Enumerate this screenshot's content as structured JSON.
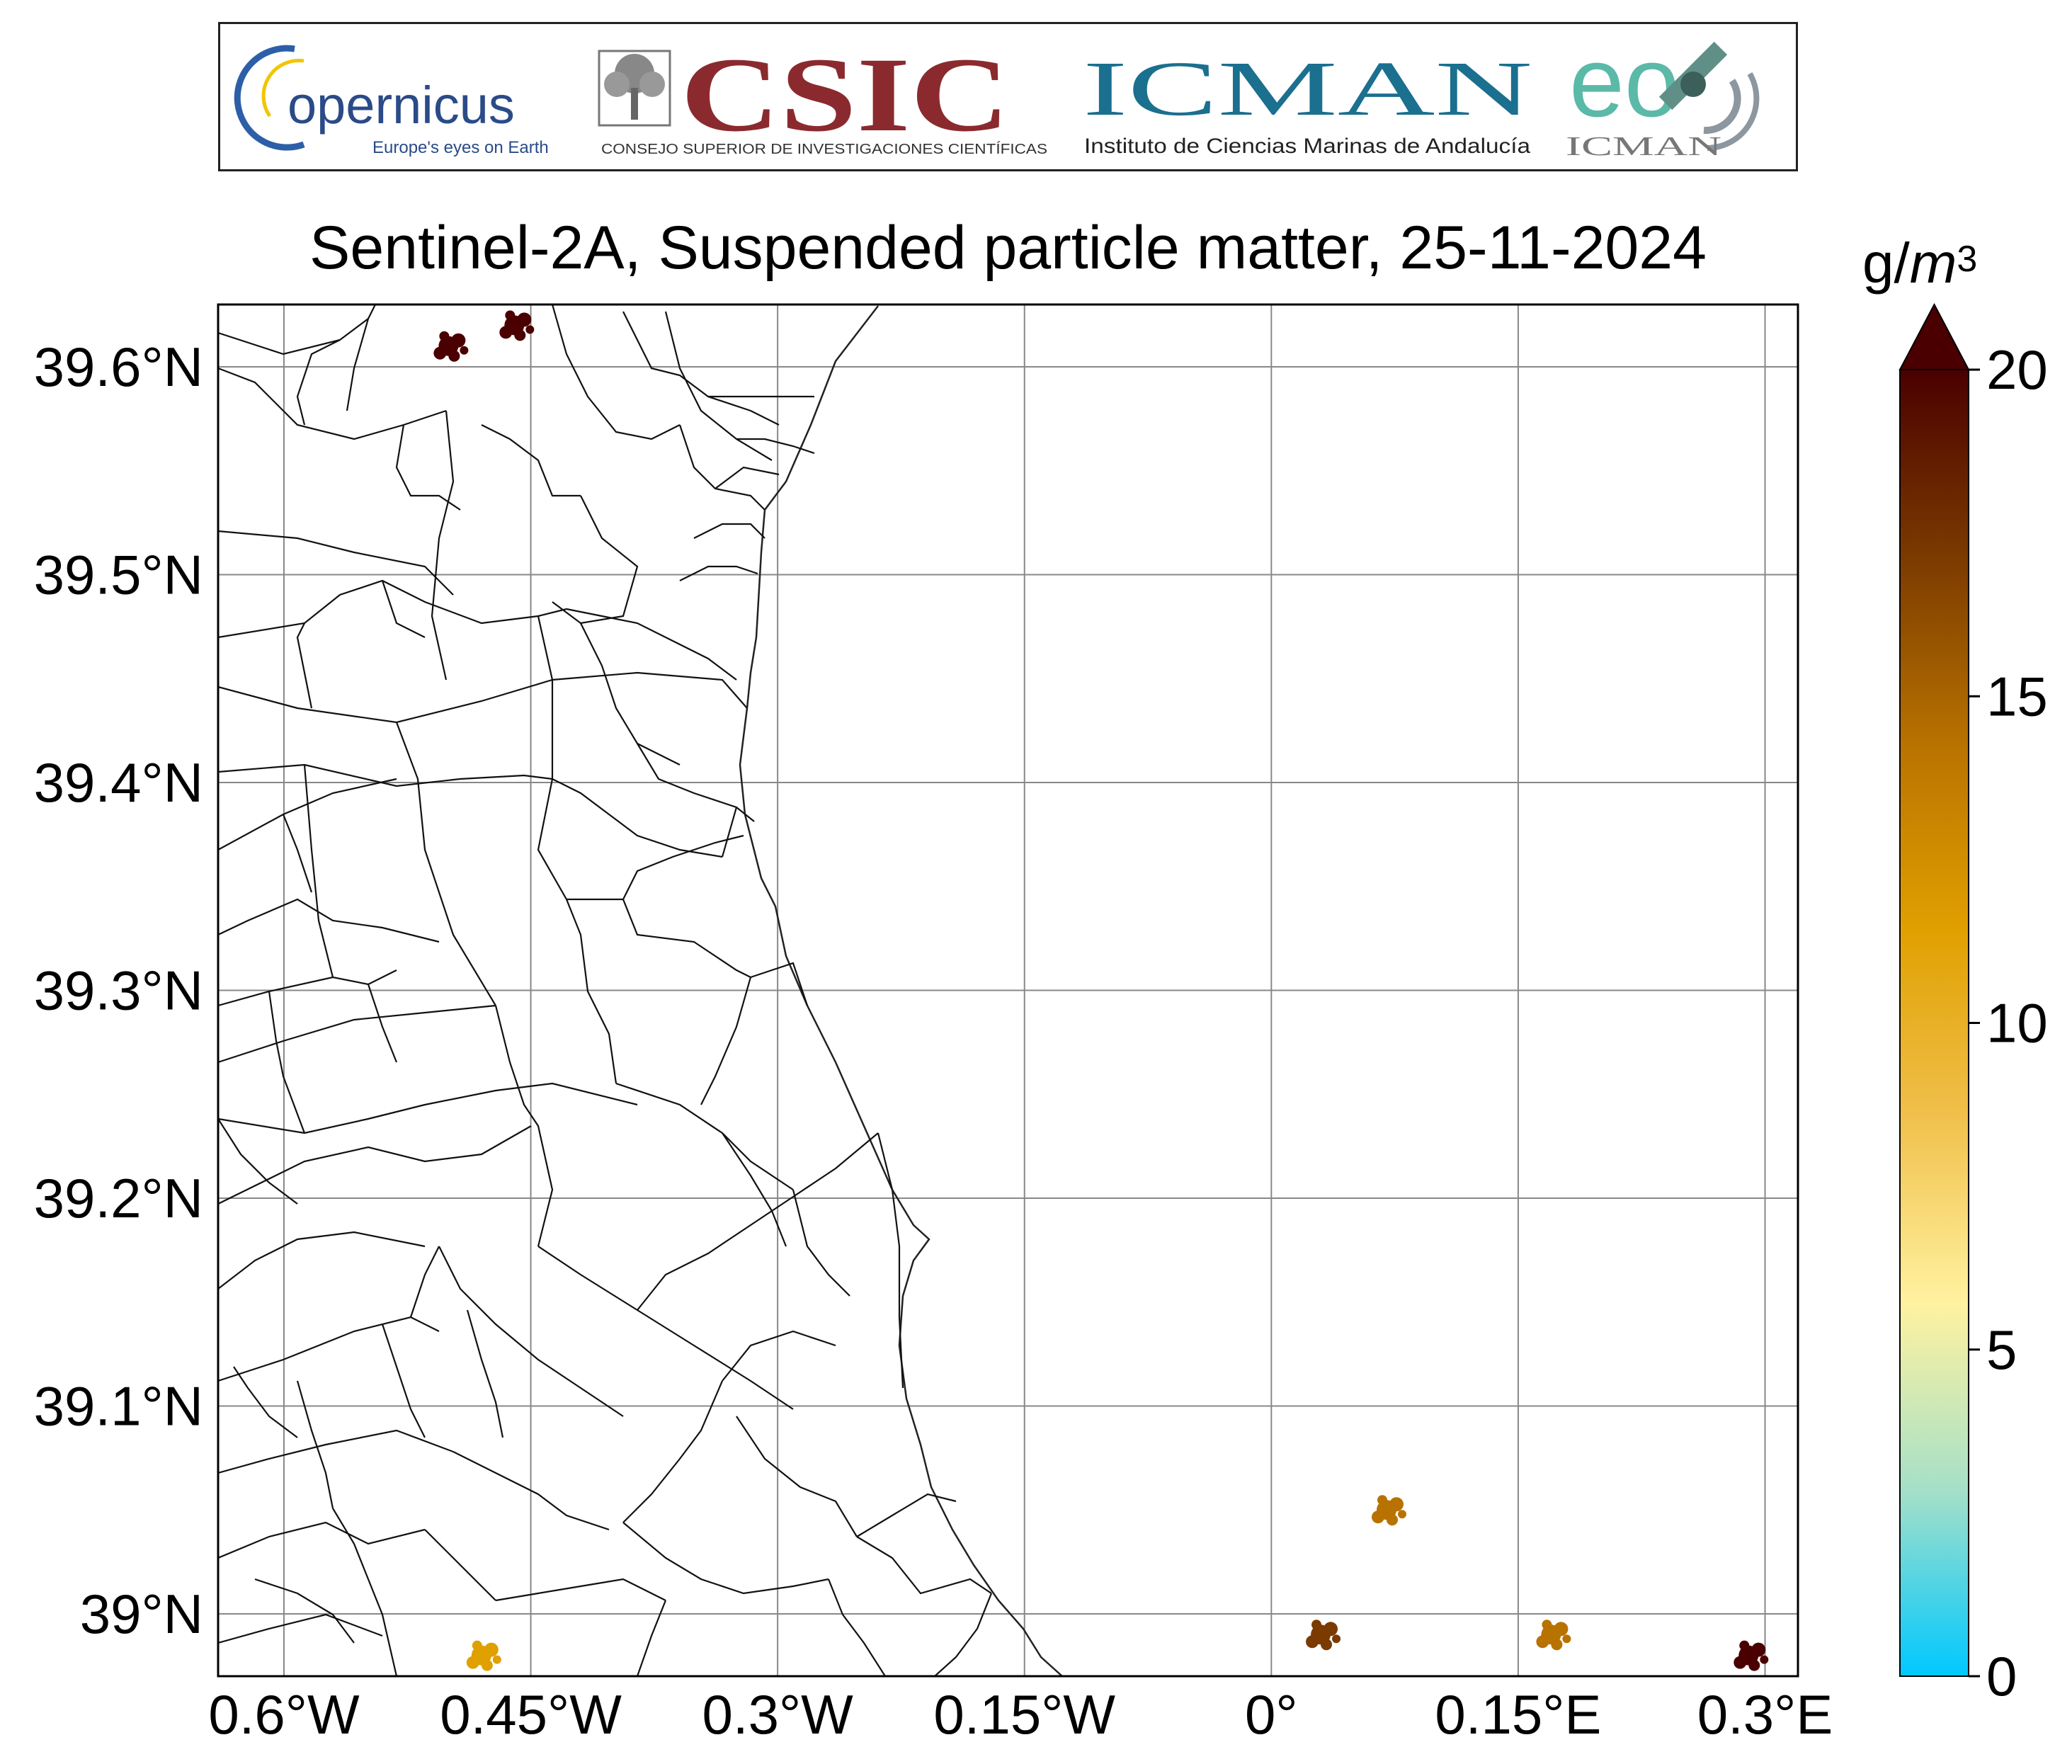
{
  "logos": {
    "copernicus": {
      "name": "opernicus",
      "tagline": "Europe's eyes on Earth"
    },
    "csic": {
      "name": "CSIC",
      "subtitle": "CONSEJO SUPERIOR DE INVESTIGACIONES CIENTÍFICAS"
    },
    "icman": {
      "name": "ICMAN",
      "subtitle": "Instituto de Ciencias Marinas de Andalucía"
    },
    "eo": {
      "name": "eo",
      "subtitle": "ICMAN"
    }
  },
  "map": {
    "title": "Sentinel-2A, Suspended particle matter, 25-11-2024",
    "lon_range": [
      -0.64,
      0.32
    ],
    "lat_range": [
      38.97,
      39.63
    ],
    "lat_ticks": [
      {
        "value": 39.6,
        "label": "39.6°N"
      },
      {
        "value": 39.5,
        "label": "39.5°N"
      },
      {
        "value": 39.4,
        "label": "39.4°N"
      },
      {
        "value": 39.3,
        "label": "39.3°N"
      },
      {
        "value": 39.2,
        "label": "39.2°N"
      },
      {
        "value": 39.1,
        "label": "39.1°N"
      },
      {
        "value": 39.0,
        "label": "39°N"
      }
    ],
    "lon_ticks": [
      {
        "value": -0.6,
        "label": "0.6°W"
      },
      {
        "value": -0.45,
        "label": "0.45°W"
      },
      {
        "value": -0.3,
        "label": "0.3°W"
      },
      {
        "value": -0.15,
        "label": "0.15°W"
      },
      {
        "value": 0.0,
        "label": "0°"
      },
      {
        "value": 0.15,
        "label": "0.15°E"
      },
      {
        "value": 0.3,
        "label": "0.3°E"
      }
    ],
    "grid": true
  },
  "colorbar": {
    "unit": {
      "base": "g/",
      "var": "m",
      "exp": "3"
    },
    "range": [
      0,
      20
    ],
    "extend": "max",
    "ticks": [
      {
        "value": 0,
        "label": "0"
      },
      {
        "value": 5,
        "label": "5"
      },
      {
        "value": 10,
        "label": "10"
      },
      {
        "value": 15,
        "label": "15"
      },
      {
        "value": 20,
        "label": "20"
      }
    ],
    "colors": [
      "#00c8ff",
      "#a6e0c8",
      "#fff2a0",
      "#f0c04c",
      "#e0a000",
      "#b87200",
      "#7a3a00",
      "#4a0000"
    ]
  },
  "chart_data": {
    "type": "heatmap",
    "title": "Sentinel-2A, Suspended particle matter, 25-11-2024",
    "xlabel": "",
    "ylabel": "",
    "xlim": [
      -0.64,
      0.32
    ],
    "ylim": [
      38.97,
      39.63
    ],
    "colorbar_label": "g/m3",
    "colorbar_range": [
      0,
      20
    ],
    "patches": [
      {
        "lon": -0.5,
        "lat": 39.61,
        "value": 20
      },
      {
        "lon": -0.46,
        "lat": 39.62,
        "value": 20
      },
      {
        "lon": -0.48,
        "lat": 38.98,
        "value": 12
      },
      {
        "lon": 0.07,
        "lat": 39.05,
        "value": 14
      },
      {
        "lon": 0.03,
        "lat": 38.99,
        "value": 16
      },
      {
        "lon": 0.17,
        "lat": 38.99,
        "value": 15
      },
      {
        "lon": 0.29,
        "lat": 38.98,
        "value": 20
      }
    ]
  }
}
